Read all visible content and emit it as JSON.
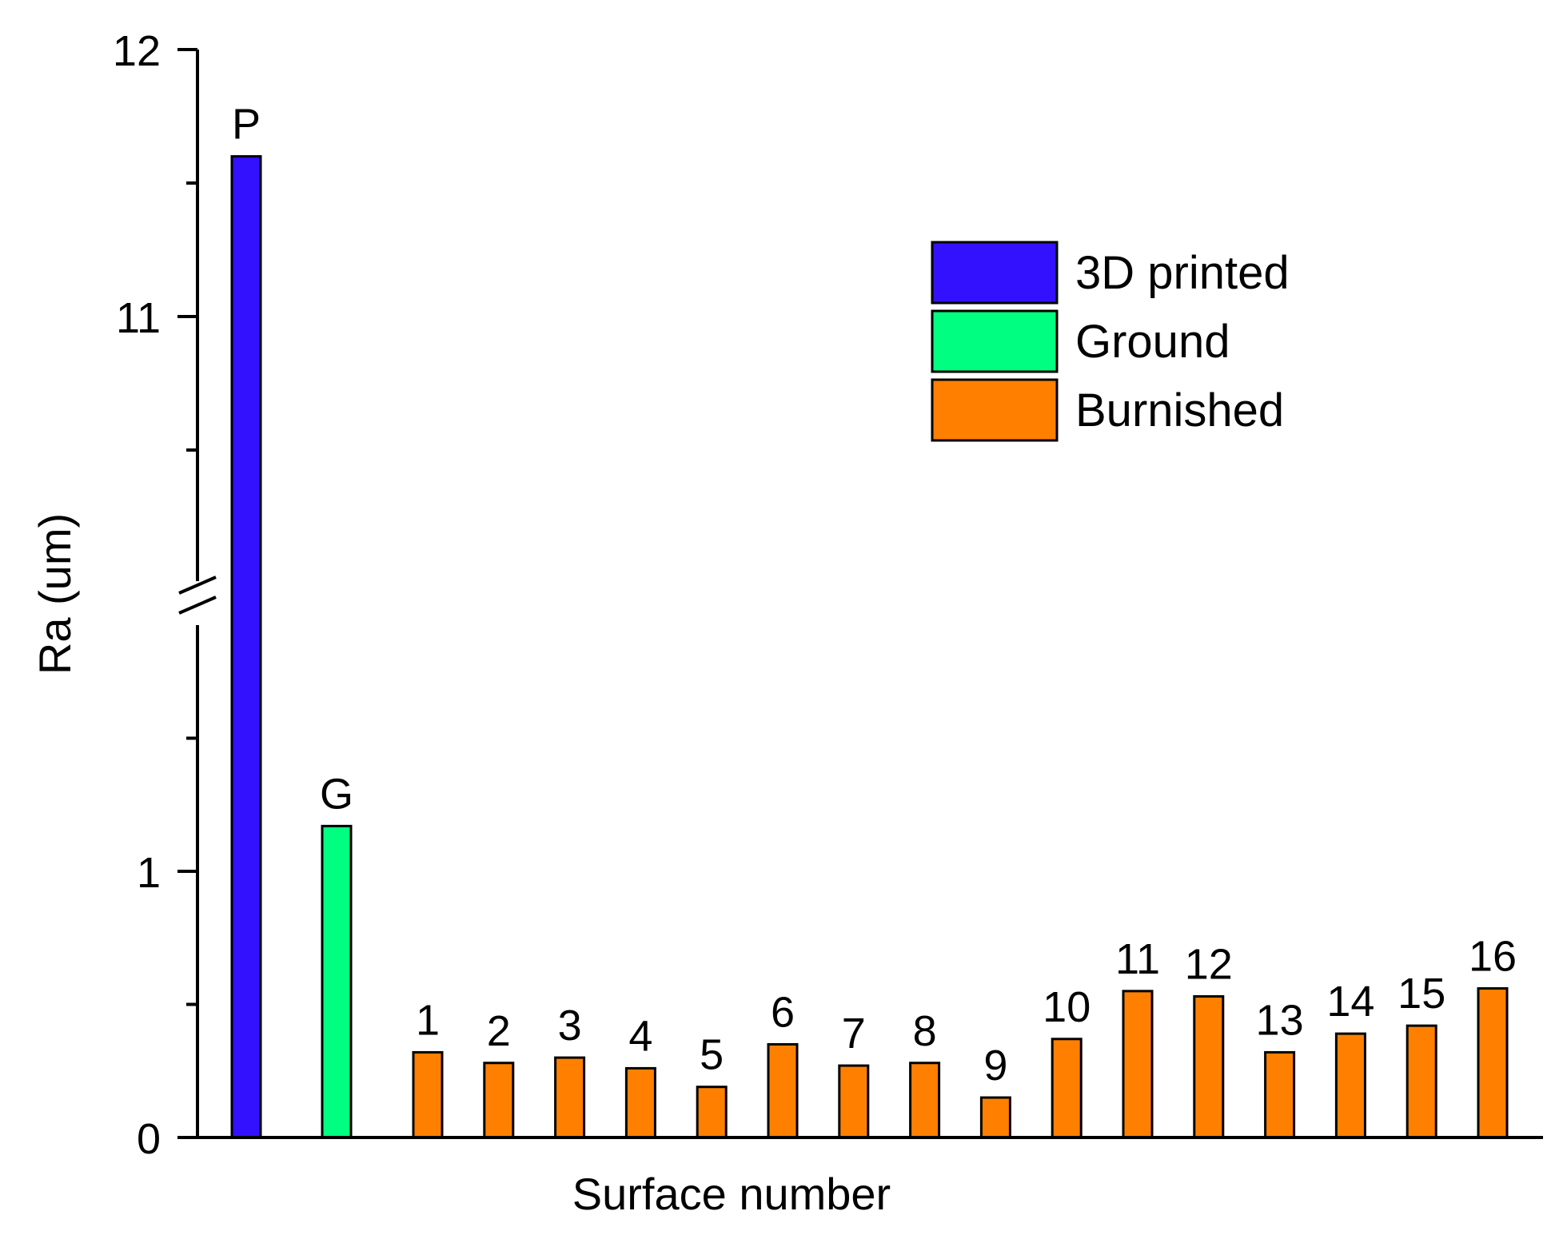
{
  "chart_data": {
    "type": "bar",
    "xlabel": "Surface number",
    "ylabel": "Ra (um)",
    "y_axis_break": {
      "lower_segment": [
        0,
        1.5
      ],
      "upper_segment": [
        10,
        12
      ],
      "break_marker": "//"
    },
    "yticks": [
      {
        "value": 0,
        "label": "0"
      },
      {
        "value": 1,
        "label": "1"
      },
      {
        "value": 11,
        "label": "11"
      },
      {
        "value": 12,
        "label": "12"
      }
    ],
    "minor_yticks": [
      0.5,
      1.5,
      10.5,
      11.5
    ],
    "legend": {
      "position": "top-right",
      "entries": [
        {
          "label": "3D printed",
          "color": "#3311ff"
        },
        {
          "label": "Ground",
          "color": "#00ff80"
        },
        {
          "label": "Burnished",
          "color": "#ff8000"
        }
      ]
    },
    "series": [
      {
        "group": "3D printed",
        "color": "#3311ff",
        "points": [
          {
            "label": "P",
            "value": 11.6
          }
        ]
      },
      {
        "group": "Ground",
        "color": "#00ff80",
        "points": [
          {
            "label": "G",
            "value": 1.17
          }
        ]
      },
      {
        "group": "Burnished",
        "color": "#ff8000",
        "points": [
          {
            "label": "1",
            "value": 0.32
          },
          {
            "label": "2",
            "value": 0.28
          },
          {
            "label": "3",
            "value": 0.3
          },
          {
            "label": "4",
            "value": 0.26
          },
          {
            "label": "5",
            "value": 0.19
          },
          {
            "label": "6",
            "value": 0.35
          },
          {
            "label": "7",
            "value": 0.27
          },
          {
            "label": "8",
            "value": 0.28
          },
          {
            "label": "9",
            "value": 0.15
          },
          {
            "label": "10",
            "value": 0.37
          },
          {
            "label": "11",
            "value": 0.55
          },
          {
            "label": "12",
            "value": 0.53
          },
          {
            "label": "13",
            "value": 0.32
          },
          {
            "label": "14",
            "value": 0.39
          },
          {
            "label": "15",
            "value": 0.42
          },
          {
            "label": "16",
            "value": 0.56
          }
        ]
      }
    ]
  }
}
